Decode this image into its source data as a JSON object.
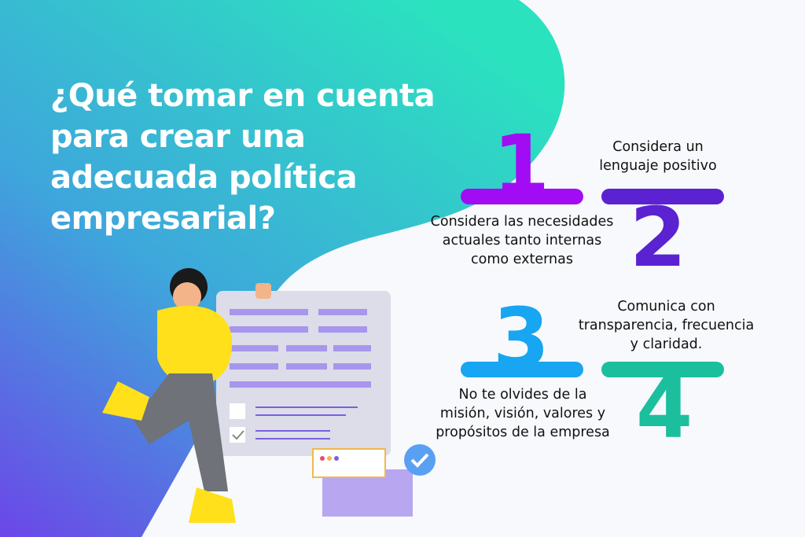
{
  "title": "¿Qué tomar en cuenta para crear una adecuada política empresarial?",
  "colors": {
    "step1": "#a10cf4",
    "step2": "#5b22d1",
    "step3": "#18a5f1",
    "step4": "#1bbf9d",
    "teal": "#2de0c0",
    "purple": "#6a4ae6"
  },
  "steps": [
    {
      "number": "1",
      "text": "Considera las necesidades actuales tanto internas como externas"
    },
    {
      "number": "2",
      "text": "Considera un lenguaje positivo"
    },
    {
      "number": "3",
      "text": "No te olvides de la misión, visión, valores y propósitos de la empresa"
    },
    {
      "number": "4",
      "text": "Comunica con transparencia, frecuencia y claridad."
    }
  ]
}
